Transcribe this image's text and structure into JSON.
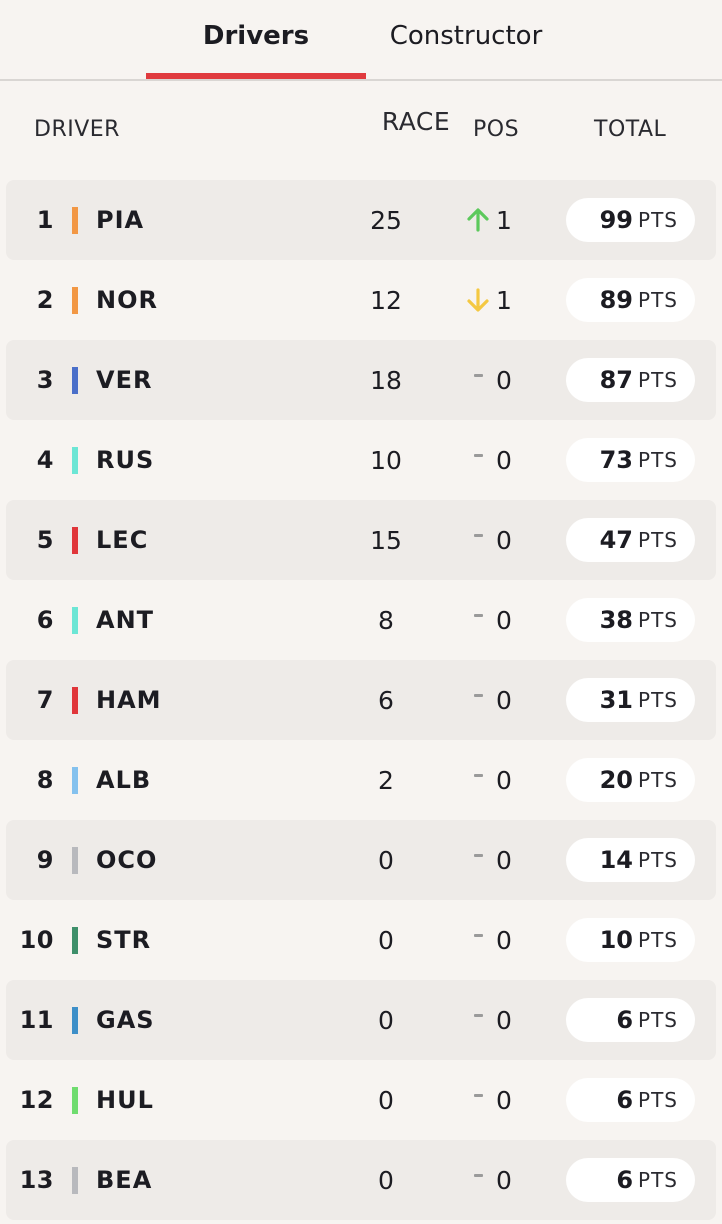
{
  "tabs": {
    "drivers": "Drivers",
    "constructor": "Constructor"
  },
  "headers": {
    "driver": "DRIVER",
    "race": "RACE",
    "pos": "POS",
    "total": "TOTAL"
  },
  "pts_label": "PTS",
  "colors": {
    "up": "#5cc95c",
    "down": "#f4c842",
    "accent": "#e03a3e"
  },
  "rows": [
    {
      "rank": "1",
      "code": "PIA",
      "team_color": "#f29744",
      "race": "25",
      "pos_dir": "up",
      "pos": "1",
      "total": "99"
    },
    {
      "rank": "2",
      "code": "NOR",
      "team_color": "#f29744",
      "race": "12",
      "pos_dir": "down",
      "pos": "1",
      "total": "89"
    },
    {
      "rank": "3",
      "code": "VER",
      "team_color": "#4a6fc9",
      "race": "18",
      "pos_dir": "same",
      "pos": "0",
      "total": "87"
    },
    {
      "rank": "4",
      "code": "RUS",
      "team_color": "#6ce6d5",
      "race": "10",
      "pos_dir": "same",
      "pos": "0",
      "total": "73"
    },
    {
      "rank": "5",
      "code": "LEC",
      "team_color": "#e0363a",
      "race": "15",
      "pos_dir": "same",
      "pos": "0",
      "total": "47"
    },
    {
      "rank": "6",
      "code": "ANT",
      "team_color": "#6ce6d5",
      "race": "8",
      "pos_dir": "same",
      "pos": "0",
      "total": "38"
    },
    {
      "rank": "7",
      "code": "HAM",
      "team_color": "#e0363a",
      "race": "6",
      "pos_dir": "same",
      "pos": "0",
      "total": "31"
    },
    {
      "rank": "8",
      "code": "ALB",
      "team_color": "#84c1ee",
      "race": "2",
      "pos_dir": "same",
      "pos": "0",
      "total": "20"
    },
    {
      "rank": "9",
      "code": "OCO",
      "team_color": "#b8b9bd",
      "race": "0",
      "pos_dir": "same",
      "pos": "0",
      "total": "14"
    },
    {
      "rank": "10",
      "code": "STR",
      "team_color": "#3e8f6a",
      "race": "0",
      "pos_dir": "same",
      "pos": "0",
      "total": "10"
    },
    {
      "rank": "11",
      "code": "GAS",
      "team_color": "#3d8fc8",
      "race": "0",
      "pos_dir": "same",
      "pos": "0",
      "total": "6"
    },
    {
      "rank": "12",
      "code": "HUL",
      "team_color": "#6fdc6f",
      "race": "0",
      "pos_dir": "same",
      "pos": "0",
      "total": "6"
    },
    {
      "rank": "13",
      "code": "BEA",
      "team_color": "#b8b9bd",
      "race": "0",
      "pos_dir": "same",
      "pos": "0",
      "total": "6"
    }
  ]
}
